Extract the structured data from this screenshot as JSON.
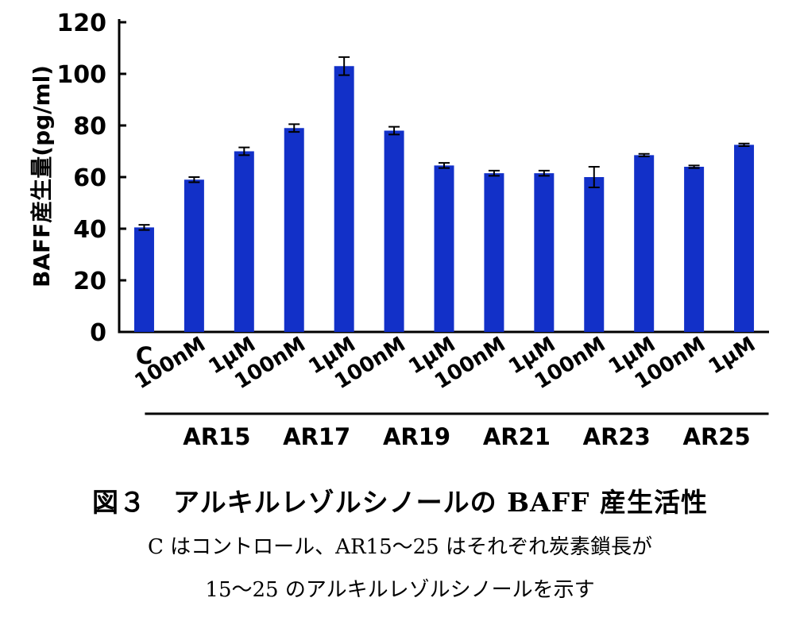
{
  "chart_data": {
    "type": "bar",
    "ylabel": "BAFF産生量(pg/ml)",
    "ylim": [
      0,
      120
    ],
    "yticks": [
      0,
      20,
      40,
      60,
      80,
      100,
      120
    ],
    "grid": false,
    "bar_color": "#1230c8",
    "categories": [
      "C",
      "100nM",
      "1μM",
      "100nM",
      "1μM",
      "100nM",
      "1μM",
      "100nM",
      "1μM",
      "100nM",
      "1μM",
      "100nM",
      "1μM"
    ],
    "values": [
      40.5,
      59,
      70,
      79,
      103,
      78,
      64.5,
      61.5,
      61.5,
      60,
      68.5,
      64,
      72.5
    ],
    "errors": [
      1,
      1,
      1.5,
      1.5,
      3.5,
      1.5,
      1,
      1,
      1,
      4,
      0.5,
      0.5,
      0.5
    ],
    "groups": [
      {
        "label": "AR15",
        "members": [
          1,
          2
        ]
      },
      {
        "label": "AR17",
        "members": [
          3,
          4
        ]
      },
      {
        "label": "AR19",
        "members": [
          5,
          6
        ]
      },
      {
        "label": "AR21",
        "members": [
          7,
          8
        ]
      },
      {
        "label": "AR23",
        "members": [
          9,
          10
        ]
      },
      {
        "label": "AR25",
        "members": [
          11,
          12
        ]
      }
    ]
  },
  "caption": {
    "title": "図３　アルキルレゾルシノールの BAFF 産生活性",
    "line1": "C はコントロール、AR15～25 はそれぞれ炭素鎖長が",
    "line2": "15～25 のアルキルレゾルシノールを示す"
  }
}
